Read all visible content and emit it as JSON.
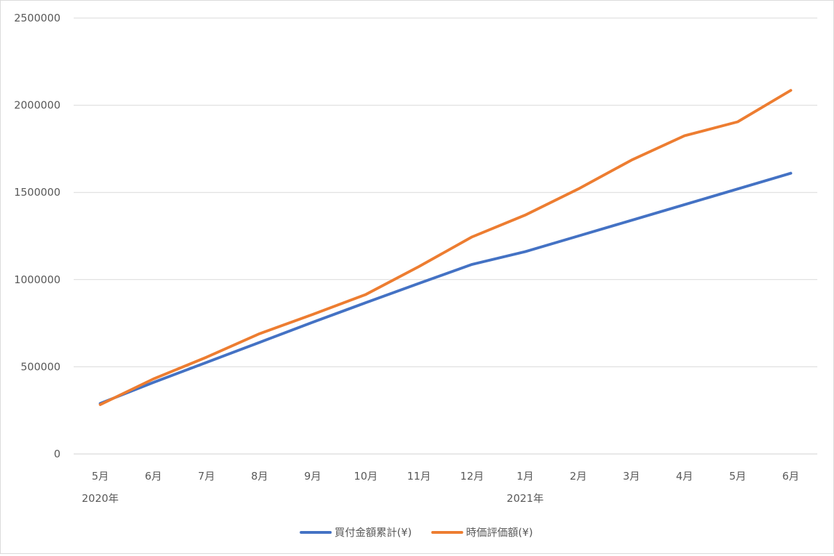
{
  "chart_data": {
    "type": "line",
    "title": "",
    "xlabel": "",
    "ylabel": "",
    "categories": [
      "5月",
      "6月",
      "7月",
      "8月",
      "9月",
      "10月",
      "11月",
      "12月",
      "1月",
      "2月",
      "3月",
      "4月",
      "5月",
      "6月"
    ],
    "year_labels": [
      {
        "label": "2020年",
        "category_index": 0
      },
      {
        "label": "2021年",
        "category_index": 8
      }
    ],
    "ylim": [
      0,
      2500000
    ],
    "y_ticks": [
      "0",
      "500000",
      "1000000",
      "1500000",
      "2000000",
      "2500000"
    ],
    "grid": true,
    "legend_position": "bottom",
    "series": [
      {
        "name": "買付金額累計(¥)",
        "color": "#4472C4",
        "values": [
          290000,
          410000,
          525000,
          640000,
          755000,
          868000,
          978000,
          1087000,
          1160000,
          1250000,
          1340000,
          1430000,
          1520000,
          1610000
        ]
      },
      {
        "name": "時価評価額(¥)",
        "color": "#ED7D31",
        "values": [
          283000,
          430000,
          555000,
          690000,
          800000,
          915000,
          1075000,
          1245000,
          1370000,
          1520000,
          1685000,
          1825000,
          1905000,
          2085000
        ]
      }
    ]
  }
}
